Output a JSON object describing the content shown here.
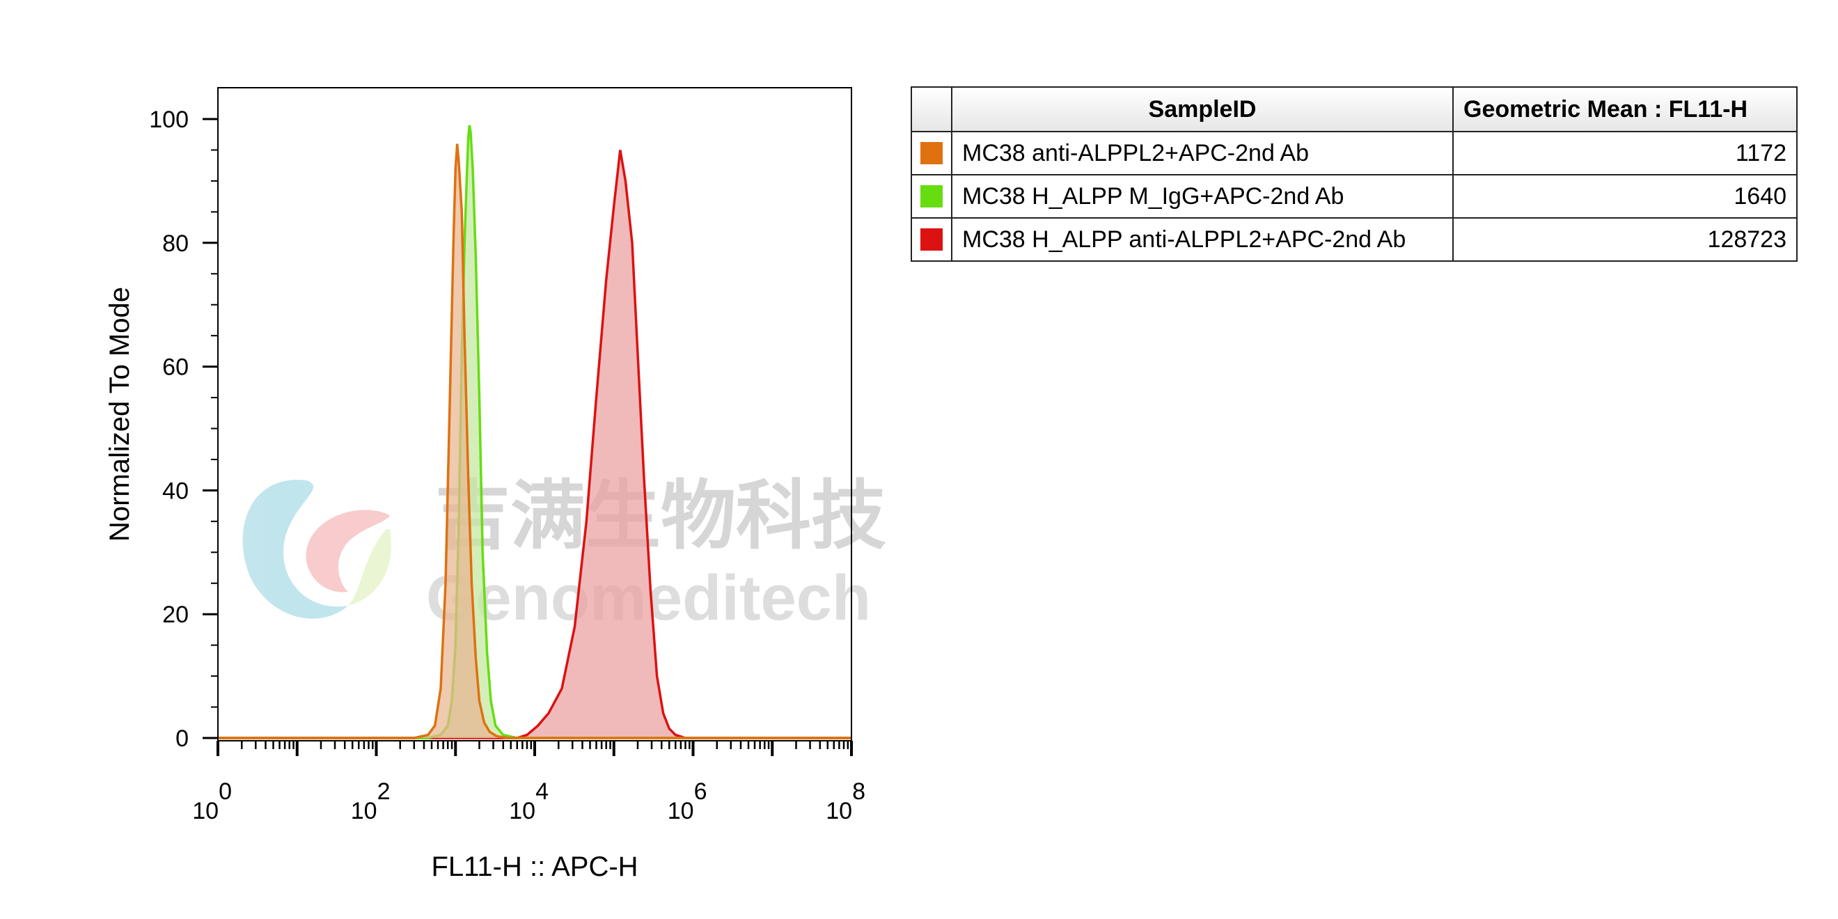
{
  "chart_data": {
    "type": "area",
    "title": "",
    "xlabel": "FL11-H :: APC-H",
    "ylabel": "Normalized To Mode",
    "x_scale": "log",
    "xlim": [
      1,
      100000000
    ],
    "ylim": [
      0,
      100
    ],
    "x_ticks": [
      {
        "base": "10",
        "exp": "0",
        "value": 1
      },
      {
        "base": "10",
        "exp": "2",
        "value": 100
      },
      {
        "base": "10",
        "exp": "4",
        "value": 10000
      },
      {
        "base": "10",
        "exp": "6",
        "value": 1000000
      },
      {
        "base": "10",
        "exp": "8",
        "value": 100000000
      }
    ],
    "y_ticks": [
      "0",
      "20",
      "40",
      "60",
      "80",
      "100"
    ],
    "legend_placement": "right",
    "series": [
      {
        "name": "MC38 anti-ALPPL2+APC-2nd Ab",
        "geometric_mean": "1172",
        "color": "#e07010",
        "fill": "#e8b690",
        "x": [
          1,
          300,
          450,
          550,
          650,
          750,
          850,
          950,
          1000,
          1050,
          1100,
          1200,
          1300,
          1450,
          1600,
          1800,
          2000,
          2300,
          2700,
          3300,
          4500,
          100000000
        ],
        "y": [
          0,
          0,
          0.5,
          2,
          8,
          25,
          55,
          82,
          92,
          96,
          93,
          85,
          65,
          42,
          25,
          13,
          6,
          2.5,
          1,
          0.3,
          0,
          0
        ]
      },
      {
        "name": "MC38 H_ALPP M_IgG+APC-2nd Ab",
        "geometric_mean": "1640",
        "color": "#66dd11",
        "fill": "#c4e8a0",
        "x": [
          1,
          450,
          650,
          800,
          900,
          1000,
          1100,
          1200,
          1300,
          1400,
          1450,
          1500,
          1550,
          1650,
          1800,
          2000,
          2200,
          2500,
          2800,
          3200,
          4000,
          6000,
          9000,
          100000000
        ],
        "y": [
          0,
          0,
          0.5,
          2,
          6,
          15,
          35,
          62,
          80,
          92,
          97,
          99,
          98,
          92,
          78,
          55,
          30,
          14,
          6,
          2,
          0.5,
          0,
          0,
          0
        ]
      },
      {
        "name": "MC38 H_ALPP anti-ALPPL2+APC-2nd Ab",
        "geometric_mean": "128723",
        "color": "#dd1111",
        "fill": "#eca0a0",
        "x": [
          1,
          6000,
          8000,
          11000,
          15000,
          22000,
          32000,
          45000,
          60000,
          80000,
          100000,
          120000,
          140000,
          170000,
          200000,
          240000,
          290000,
          350000,
          420000,
          500000,
          600000,
          800000,
          100000000
        ],
        "y": [
          0,
          0,
          0.5,
          2,
          4,
          8,
          18,
          35,
          55,
          74,
          86,
          95,
          90,
          80,
          62,
          42,
          24,
          10,
          4,
          1.5,
          0.5,
          0,
          0
        ]
      }
    ]
  },
  "table": {
    "headers": [
      "SampleID",
      "Geometric Mean : FL11-H"
    ]
  },
  "watermark": {
    "cn": "吉满生物科技",
    "en": "Genomeditech"
  }
}
